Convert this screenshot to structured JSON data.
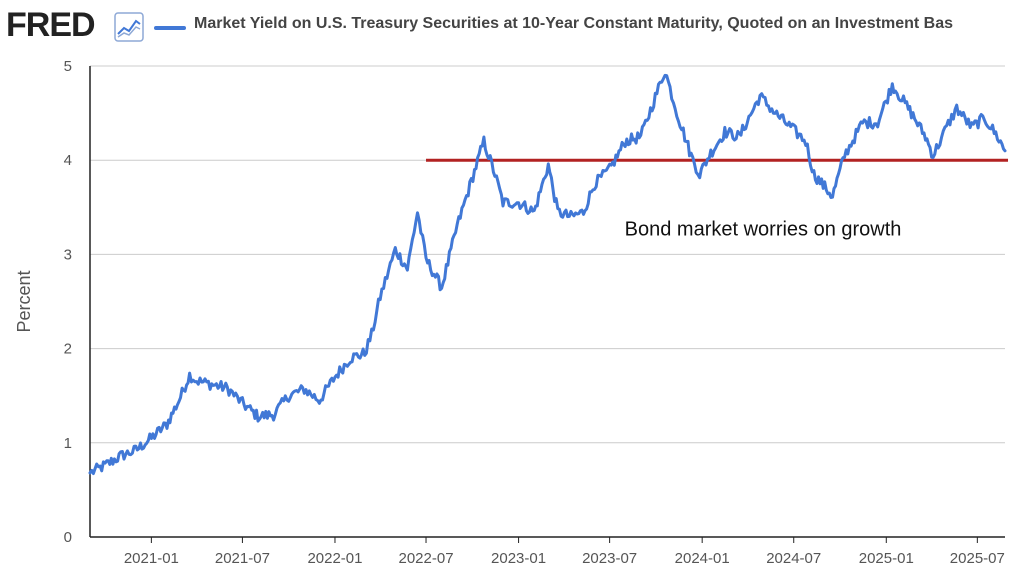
{
  "header": {
    "logo_text": "FRED",
    "logo_icon": "line-chart-icon",
    "title": "Market Yield on U.S. Treasury Securities at 10-Year Constant Maturity, Quoted on an Investment Bas"
  },
  "colors": {
    "series": "#4178d6",
    "reference_line": "#b22222",
    "grid": "#cccccc",
    "axis": "#222222",
    "text": "#555555"
  },
  "chart_data": {
    "type": "line",
    "ylabel": "Percent",
    "xlabel": "",
    "ylim": [
      0,
      5
    ],
    "xlim": [
      "2020-09-01",
      "2025-08-25"
    ],
    "yticks": [
      0,
      1,
      2,
      3,
      4,
      5
    ],
    "xticks": [
      "2021-01",
      "2021-07",
      "2022-01",
      "2022-07",
      "2023-01",
      "2023-07",
      "2024-01",
      "2024-07",
      "2025-01",
      "2025-07"
    ],
    "grid": "horizontal",
    "series": [
      {
        "name": "Market Yield on U.S. Treasury Securities at 10-Year Constant Maturity, Quoted on an Investment Bas",
        "points": [
          [
            "2020-09-01",
            0.68
          ],
          [
            "2020-10-01",
            0.76
          ],
          [
            "2020-11-01",
            0.86
          ],
          [
            "2020-12-01",
            0.92
          ],
          [
            "2021-01-01",
            1.05
          ],
          [
            "2021-02-01",
            1.2
          ],
          [
            "2021-02-25",
            1.45
          ],
          [
            "2021-03-18",
            1.72
          ],
          [
            "2021-04-01",
            1.66
          ],
          [
            "2021-05-01",
            1.62
          ],
          [
            "2021-06-01",
            1.58
          ],
          [
            "2021-07-01",
            1.42
          ],
          [
            "2021-08-01",
            1.28
          ],
          [
            "2021-09-01",
            1.3
          ],
          [
            "2021-10-01",
            1.5
          ],
          [
            "2021-11-01",
            1.57
          ],
          [
            "2021-12-01",
            1.45
          ],
          [
            "2022-01-01",
            1.7
          ],
          [
            "2022-02-01",
            1.9
          ],
          [
            "2022-03-01",
            1.95
          ],
          [
            "2022-03-15",
            2.15
          ],
          [
            "2022-04-01",
            2.55
          ],
          [
            "2022-05-01",
            3.05
          ],
          [
            "2022-05-25",
            2.85
          ],
          [
            "2022-06-14",
            3.45
          ],
          [
            "2022-07-01",
            2.95
          ],
          [
            "2022-08-01",
            2.65
          ],
          [
            "2022-09-01",
            3.3
          ],
          [
            "2022-10-24",
            4.2
          ],
          [
            "2022-11-15",
            3.85
          ],
          [
            "2022-12-01",
            3.55
          ],
          [
            "2023-01-01",
            3.55
          ],
          [
            "2023-02-01",
            3.45
          ],
          [
            "2023-03-01",
            3.95
          ],
          [
            "2023-03-20",
            3.45
          ],
          [
            "2023-04-15",
            3.4
          ],
          [
            "2023-05-10",
            3.45
          ],
          [
            "2023-06-01",
            3.75
          ],
          [
            "2023-07-01",
            3.9
          ],
          [
            "2023-08-01",
            4.2
          ],
          [
            "2023-09-01",
            4.25
          ],
          [
            "2023-10-19",
            4.95
          ],
          [
            "2023-11-15",
            4.45
          ],
          [
            "2023-12-10",
            4.05
          ],
          [
            "2023-12-27",
            3.85
          ],
          [
            "2024-01-15",
            4.05
          ],
          [
            "2024-02-15",
            4.3
          ],
          [
            "2024-03-15",
            4.25
          ],
          [
            "2024-04-25",
            4.68
          ],
          [
            "2024-05-25",
            4.5
          ],
          [
            "2024-06-25",
            4.35
          ],
          [
            "2024-07-25",
            4.2
          ],
          [
            "2024-08-10",
            3.85
          ],
          [
            "2024-09-16",
            3.62
          ],
          [
            "2024-10-10",
            4.05
          ],
          [
            "2024-11-15",
            4.4
          ],
          [
            "2024-12-15",
            4.4
          ],
          [
            "2025-01-13",
            4.8
          ],
          [
            "2025-02-20",
            4.5
          ],
          [
            "2025-03-20",
            4.25
          ],
          [
            "2025-04-04",
            4.05
          ],
          [
            "2025-05-01",
            4.35
          ],
          [
            "2025-05-21",
            4.55
          ],
          [
            "2025-06-20",
            4.35
          ],
          [
            "2025-07-15",
            4.45
          ],
          [
            "2025-08-10",
            4.25
          ],
          [
            "2025-08-25",
            4.1
          ]
        ]
      }
    ],
    "reference_lines": [
      {
        "y": 4.0,
        "x_start": "2022-07-01",
        "x_end": "2025-08-31"
      }
    ],
    "annotations": [
      {
        "text": "Bond market worries on growth",
        "x": "2024-05-01",
        "y": 3.2
      }
    ]
  }
}
